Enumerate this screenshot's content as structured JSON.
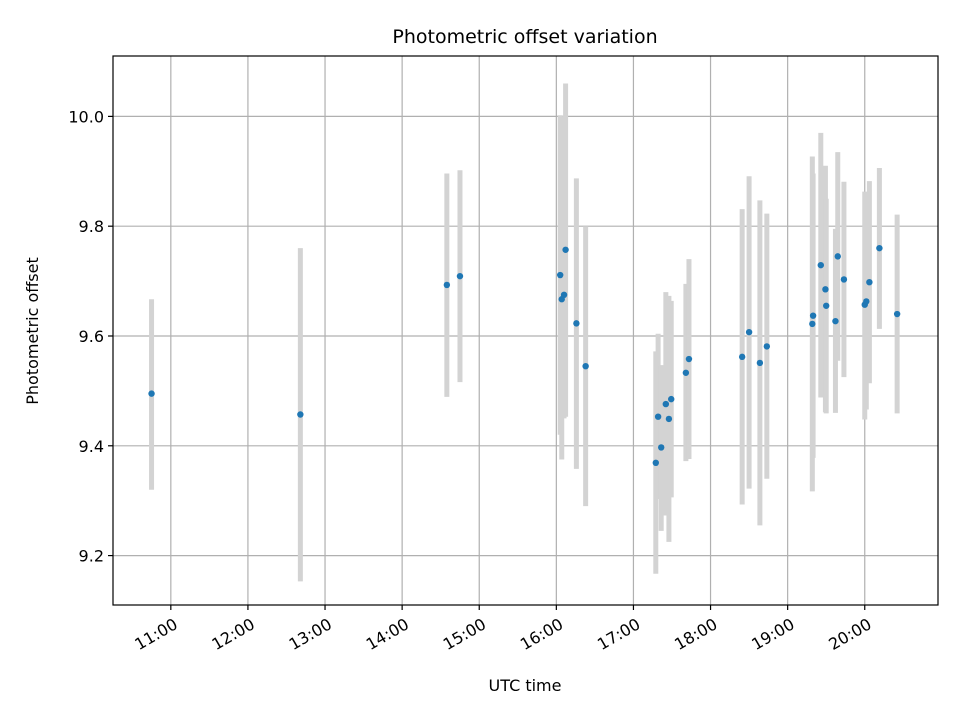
{
  "chart_data": {
    "type": "scatter",
    "title": "Photometric offset variation",
    "xlabel": "UTC time",
    "ylabel": "Photometric offset",
    "x_unit": "hours UTC",
    "xlim": [
      10.25,
      20.95
    ],
    "ylim": [
      9.11,
      10.11
    ],
    "xticks": [
      11,
      12,
      13,
      14,
      15,
      16,
      17,
      18,
      19,
      20
    ],
    "xtick_labels": [
      "11:00",
      "12:00",
      "13:00",
      "14:00",
      "15:00",
      "16:00",
      "17:00",
      "18:00",
      "19:00",
      "20:00"
    ],
    "yticks": [
      9.2,
      9.4,
      9.6,
      9.8,
      10.0
    ],
    "ytick_labels": [
      "9.2",
      "9.4",
      "9.6",
      "9.8",
      "10.0"
    ],
    "grid": true,
    "legend": false,
    "marker_color": "#1f77b4",
    "errorbar_color": "#d3d3d3",
    "points": [
      {
        "x": 10.75,
        "y": 9.495,
        "lo": 9.32,
        "hi": 9.667
      },
      {
        "x": 12.68,
        "y": 9.457,
        "lo": 9.153,
        "hi": 9.76
      },
      {
        "x": 14.58,
        "y": 9.693,
        "lo": 9.489,
        "hi": 9.896
      },
      {
        "x": 14.75,
        "y": 9.709,
        "lo": 9.516,
        "hi": 9.902
      },
      {
        "x": 16.05,
        "y": 9.711,
        "lo": 9.42,
        "hi": 10.002
      },
      {
        "x": 16.07,
        "y": 9.667,
        "lo": 9.375,
        "hi": 10.0
      },
      {
        "x": 16.1,
        "y": 9.675,
        "lo": 9.45,
        "hi": 9.902
      },
      {
        "x": 16.12,
        "y": 9.757,
        "lo": 9.453,
        "hi": 10.06
      },
      {
        "x": 16.26,
        "y": 9.623,
        "lo": 9.358,
        "hi": 9.887
      },
      {
        "x": 16.38,
        "y": 9.545,
        "lo": 9.29,
        "hi": 9.8
      },
      {
        "x": 17.29,
        "y": 9.369,
        "lo": 9.167,
        "hi": 9.572
      },
      {
        "x": 17.32,
        "y": 9.453,
        "lo": 9.303,
        "hi": 9.604
      },
      {
        "x": 17.36,
        "y": 9.397,
        "lo": 9.245,
        "hi": 9.547
      },
      {
        "x": 17.42,
        "y": 9.476,
        "lo": 9.273,
        "hi": 9.68
      },
      {
        "x": 17.46,
        "y": 9.449,
        "lo": 9.225,
        "hi": 9.673
      },
      {
        "x": 17.49,
        "y": 9.485,
        "lo": 9.306,
        "hi": 9.664
      },
      {
        "x": 17.68,
        "y": 9.533,
        "lo": 9.372,
        "hi": 9.695
      },
      {
        "x": 17.72,
        "y": 9.558,
        "lo": 9.376,
        "hi": 9.74
      },
      {
        "x": 18.41,
        "y": 9.562,
        "lo": 9.293,
        "hi": 9.831
      },
      {
        "x": 18.5,
        "y": 9.607,
        "lo": 9.322,
        "hi": 9.891
      },
      {
        "x": 18.64,
        "y": 9.551,
        "lo": 9.255,
        "hi": 9.847
      },
      {
        "x": 18.73,
        "y": 9.581,
        "lo": 9.34,
        "hi": 9.823
      },
      {
        "x": 19.32,
        "y": 9.622,
        "lo": 9.317,
        "hi": 9.927
      },
      {
        "x": 19.33,
        "y": 9.637,
        "lo": 9.378,
        "hi": 9.896
      },
      {
        "x": 19.43,
        "y": 9.729,
        "lo": 9.488,
        "hi": 9.97
      },
      {
        "x": 19.49,
        "y": 9.685,
        "lo": 9.461,
        "hi": 9.91
      },
      {
        "x": 19.5,
        "y": 9.655,
        "lo": 9.459,
        "hi": 9.85
      },
      {
        "x": 19.62,
        "y": 9.627,
        "lo": 9.46,
        "hi": 9.795
      },
      {
        "x": 19.65,
        "y": 9.745,
        "lo": 9.555,
        "hi": 9.935
      },
      {
        "x": 19.73,
        "y": 9.703,
        "lo": 9.525,
        "hi": 9.881
      },
      {
        "x": 20.0,
        "y": 9.657,
        "lo": 9.448,
        "hi": 9.863
      },
      {
        "x": 20.02,
        "y": 9.663,
        "lo": 9.466,
        "hi": 9.86
      },
      {
        "x": 20.06,
        "y": 9.698,
        "lo": 9.514,
        "hi": 9.882
      },
      {
        "x": 20.19,
        "y": 9.76,
        "lo": 9.613,
        "hi": 9.906
      },
      {
        "x": 20.42,
        "y": 9.64,
        "lo": 9.459,
        "hi": 9.821
      }
    ]
  }
}
